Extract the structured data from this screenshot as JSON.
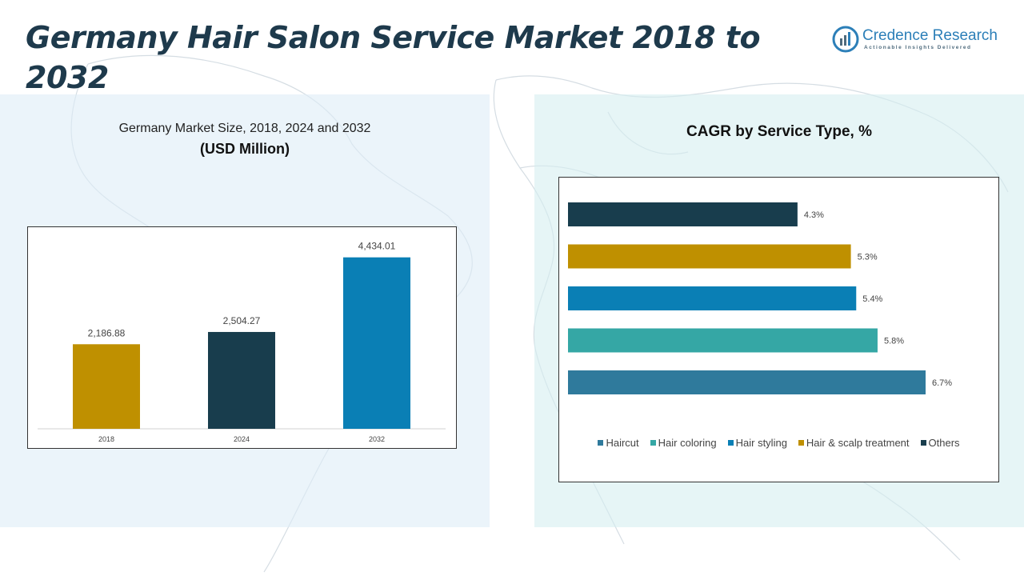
{
  "header": {
    "title": "Germany Hair Salon Service Market 2018 to 2032"
  },
  "logo": {
    "name": "Credence Research",
    "tagline": "Actionable Insights Delivered",
    "icon": "bar-chart-logo-icon",
    "color": "#2c7fb8"
  },
  "left_panel": {
    "subtitle": "Germany Market Size, 2018, 2024 and 2032",
    "unit": "(USD Million)"
  },
  "right_panel": {
    "subtitle": "CAGR by Service Type, %"
  },
  "chart_data": [
    {
      "type": "bar",
      "categories": [
        "2018",
        "2024",
        "2032"
      ],
      "values": [
        2186.88,
        2504.27,
        4434.01
      ],
      "value_labels": [
        "2,186.88",
        "2,504.27",
        "4,434.01"
      ],
      "colors": [
        "#bf9000",
        "#183d4d",
        "#0a7fb5"
      ],
      "ylim": [
        0,
        4800
      ],
      "grid": false,
      "legend": "none"
    },
    {
      "type": "bar",
      "orientation": "horizontal",
      "categories": [
        "Others",
        "Hair & scalp treatment",
        "Hair styling",
        "Hair coloring",
        "Haircut"
      ],
      "values": [
        4.3,
        5.3,
        5.4,
        5.8,
        6.7
      ],
      "value_labels": [
        "4.3%",
        "5.3%",
        "5.4%",
        "5.8%",
        "6.7%"
      ],
      "colors": [
        "#183d4d",
        "#bf9000",
        "#0a7fb5",
        "#35a7a5",
        "#2f7a9c"
      ],
      "xlim": [
        0,
        7.2
      ],
      "grid": false,
      "legend": "bottom",
      "legend_order": [
        "Haircut",
        "Hair coloring",
        "Hair styling",
        "Hair & scalp treatment",
        "Others"
      ],
      "legend_colors": [
        "#2f7a9c",
        "#35a7a5",
        "#0a7fb5",
        "#bf9000",
        "#183d4d"
      ]
    }
  ]
}
